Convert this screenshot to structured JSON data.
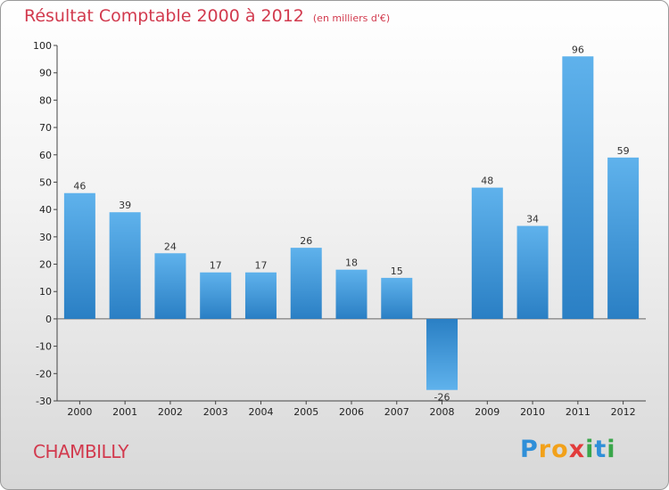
{
  "chart_data": {
    "type": "bar",
    "title": "Résultat Comptable 2000 à 2012",
    "subtitle": "(en milliers d'€)",
    "categories": [
      "2000",
      "2001",
      "2002",
      "2003",
      "2004",
      "2005",
      "2006",
      "2007",
      "2008",
      "2009",
      "2010",
      "2011",
      "2012"
    ],
    "values": [
      46,
      39,
      24,
      17,
      17,
      26,
      18,
      15,
      -26,
      48,
      34,
      96,
      59
    ],
    "ylim": [
      -30,
      100
    ],
    "yticks": [
      -30,
      -20,
      -10,
      0,
      10,
      20,
      30,
      40,
      50,
      60,
      70,
      80,
      90,
      100
    ],
    "grid": false,
    "bar_color": "#3a92d6"
  },
  "footer": {
    "commune": "CHAMBILLY",
    "logo_letters": [
      "P",
      "r",
      "o",
      "x",
      "i",
      "t",
      "i"
    ]
  }
}
